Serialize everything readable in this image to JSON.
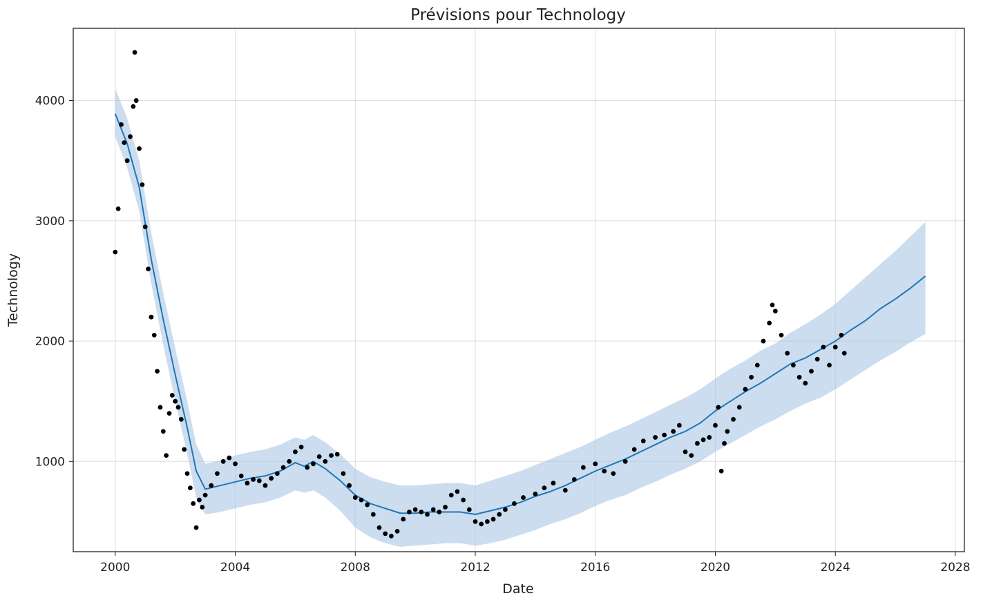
{
  "chart_data": {
    "type": "line",
    "title": "Prévisions pour Technology",
    "xlabel": "Date",
    "ylabel": "Technology",
    "x_ticks": [
      "2000",
      "2004",
      "2008",
      "2012",
      "2016",
      "2020",
      "2024",
      "2028"
    ],
    "y_ticks": [
      "1000",
      "2000",
      "3000",
      "4000"
    ],
    "xlim": [
      1998.6,
      2028.3
    ],
    "ylim": [
      250,
      4600
    ],
    "grid": true,
    "colors": {
      "forecast": "#1f77b4",
      "band": "#a9c6e4",
      "observed": "#000000",
      "grid": "#dddddd"
    },
    "series": [
      {
        "role": "forecast",
        "x": [
          2000.0,
          2000.4,
          2000.8,
          2001.2,
          2001.6,
          2002.0,
          2002.4,
          2002.7,
          2003.0,
          2003.5,
          2004.0,
          2004.5,
          2005.0,
          2005.5,
          2006.0,
          2006.3,
          2006.6,
          2007.0,
          2007.5,
          2008.0,
          2008.5,
          2009.0,
          2009.5,
          2010.0,
          2010.5,
          2011.0,
          2011.5,
          2012.0,
          2012.5,
          2013.0,
          2013.5,
          2014.0,
          2014.5,
          2015.0,
          2015.5,
          2016.0,
          2016.5,
          2017.0,
          2017.5,
          2018.0,
          2018.5,
          2019.0,
          2019.5,
          2020.0,
          2020.5,
          2021.0,
          2021.5,
          2022.0,
          2022.5,
          2023.0,
          2023.5,
          2024.0,
          2024.5,
          2025.0,
          2025.5,
          2026.0,
          2026.5,
          2027.0
        ],
        "yhat": [
          3890,
          3640,
          3280,
          2680,
          2180,
          1720,
          1280,
          920,
          770,
          800,
          830,
          860,
          880,
          920,
          990,
          960,
          1000,
          940,
          840,
          720,
          650,
          610,
          570,
          570,
          580,
          580,
          580,
          560,
          590,
          620,
          660,
          710,
          750,
          800,
          860,
          920,
          970,
          1020,
          1080,
          1140,
          1200,
          1250,
          1320,
          1420,
          1500,
          1580,
          1650,
          1730,
          1810,
          1860,
          1930,
          2000,
          2090,
          2170,
          2270,
          2350,
          2440,
          2540
        ],
        "yhat_lower": [
          3700,
          3440,
          3080,
          2480,
          1970,
          1500,
          1060,
          700,
          560,
          580,
          610,
          640,
          660,
          700,
          760,
          740,
          760,
          700,
          590,
          450,
          370,
          320,
          290,
          300,
          310,
          320,
          320,
          300,
          320,
          350,
          390,
          430,
          480,
          520,
          570,
          630,
          680,
          720,
          780,
          830,
          890,
          940,
          1000,
          1080,
          1150,
          1220,
          1290,
          1350,
          1420,
          1480,
          1530,
          1600,
          1680,
          1760,
          1840,
          1910,
          1990,
          2060
        ],
        "yhat_upper": [
          4100,
          3850,
          3500,
          2900,
          2400,
          1940,
          1500,
          1140,
          980,
          1010,
          1050,
          1080,
          1100,
          1140,
          1200,
          1180,
          1220,
          1160,
          1060,
          940,
          870,
          830,
          800,
          800,
          810,
          820,
          820,
          800,
          840,
          880,
          920,
          970,
          1020,
          1070,
          1120,
          1180,
          1240,
          1290,
          1350,
          1410,
          1470,
          1530,
          1600,
          1690,
          1770,
          1840,
          1920,
          1980,
          2070,
          2140,
          2220,
          2310,
          2420,
          2530,
          2640,
          2750,
          2870,
          2990
        ]
      },
      {
        "role": "observed",
        "x": [
          2000.0,
          2000.1,
          2000.2,
          2000.3,
          2000.4,
          2000.5,
          2000.6,
          2000.65,
          2000.7,
          2000.8,
          2000.9,
          2001.0,
          2001.1,
          2001.2,
          2001.3,
          2001.4,
          2001.5,
          2001.6,
          2001.7,
          2001.8,
          2001.9,
          2002.0,
          2002.1,
          2002.2,
          2002.3,
          2002.4,
          2002.5,
          2002.6,
          2002.7,
          2002.8,
          2002.9,
          2003.0,
          2003.2,
          2003.4,
          2003.6,
          2003.8,
          2004.0,
          2004.2,
          2004.4,
          2004.6,
          2004.8,
          2005.0,
          2005.2,
          2005.4,
          2005.6,
          2005.8,
          2006.0,
          2006.2,
          2006.4,
          2006.6,
          2006.8,
          2007.0,
          2007.2,
          2007.4,
          2007.6,
          2007.8,
          2008.0,
          2008.2,
          2008.4,
          2008.6,
          2008.8,
          2009.0,
          2009.2,
          2009.4,
          2009.6,
          2009.8,
          2010.0,
          2010.2,
          2010.4,
          2010.6,
          2010.8,
          2011.0,
          2011.2,
          2011.4,
          2011.6,
          2011.8,
          2012.0,
          2012.2,
          2012.4,
          2012.6,
          2012.8,
          2013.0,
          2013.3,
          2013.6,
          2014.0,
          2014.3,
          2014.6,
          2015.0,
          2015.3,
          2015.6,
          2016.0,
          2016.3,
          2016.6,
          2017.0,
          2017.3,
          2017.6,
          2018.0,
          2018.3,
          2018.6,
          2018.8,
          2019.0,
          2019.2,
          2019.4,
          2019.6,
          2019.8,
          2020.0,
          2020.1,
          2020.2,
          2020.3,
          2020.4,
          2020.6,
          2020.8,
          2021.0,
          2021.2,
          2021.4,
          2021.6,
          2021.8,
          2021.9,
          2022.0,
          2022.2,
          2022.4,
          2022.6,
          2022.8,
          2023.0,
          2023.2,
          2023.4,
          2023.6,
          2023.8,
          2024.0,
          2024.2,
          2024.3
        ],
        "y": [
          2740,
          3100,
          3800,
          3650,
          3500,
          3700,
          3950,
          4400,
          4000,
          3600,
          3300,
          2950,
          2600,
          2200,
          2050,
          1750,
          1450,
          1250,
          1050,
          1400,
          1550,
          1500,
          1450,
          1350,
          1100,
          900,
          780,
          650,
          450,
          680,
          620,
          720,
          800,
          900,
          1000,
          1030,
          980,
          880,
          820,
          850,
          840,
          800,
          860,
          900,
          950,
          1000,
          1080,
          1120,
          950,
          980,
          1040,
          1000,
          1050,
          1060,
          900,
          800,
          700,
          680,
          640,
          560,
          450,
          400,
          380,
          420,
          520,
          580,
          600,
          580,
          560,
          600,
          580,
          620,
          720,
          750,
          680,
          600,
          500,
          480,
          500,
          520,
          560,
          600,
          650,
          700,
          730,
          780,
          820,
          760,
          850,
          950,
          980,
          920,
          900,
          1000,
          1100,
          1170,
          1200,
          1220,
          1250,
          1300,
          1080,
          1050,
          1150,
          1180,
          1200,
          1300,
          1450,
          920,
          1150,
          1250,
          1350,
          1450,
          1600,
          1700,
          1800,
          2000,
          2150,
          2300,
          2250,
          2050,
          1900,
          1800,
          1700,
          1650,
          1750,
          1850,
          1950,
          1800,
          1950,
          2050,
          1900
        ]
      }
    ]
  }
}
